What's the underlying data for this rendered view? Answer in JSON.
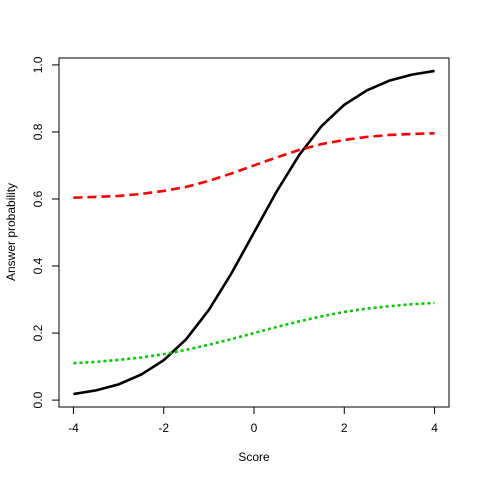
{
  "chart_data": {
    "type": "line",
    "x_label": "Score",
    "y_label": "Answer probability",
    "x": [
      -4,
      -3.5,
      -3,
      -2.5,
      -2,
      -1.5,
      -1,
      -0.5,
      0,
      0.5,
      1,
      1.5,
      2,
      2.5,
      3,
      3.5,
      4
    ],
    "series": [
      {
        "color": "#000000",
        "dash": "none",
        "values": [
          0.018,
          0.029,
          0.047,
          0.076,
          0.119,
          0.182,
          0.269,
          0.378,
          0.5,
          0.622,
          0.731,
          0.818,
          0.881,
          0.924,
          0.953,
          0.971,
          0.982
        ]
      },
      {
        "color": "#ff0000",
        "dash": "9 5",
        "values": [
          0.604,
          0.606,
          0.609,
          0.615,
          0.624,
          0.636,
          0.654,
          0.676,
          0.7,
          0.724,
          0.746,
          0.764,
          0.776,
          0.785,
          0.791,
          0.794,
          0.796
        ]
      },
      {
        "color": "#00cd00",
        "dash": "3 3",
        "values": [
          0.11,
          0.114,
          0.12,
          0.127,
          0.137,
          0.15,
          0.165,
          0.182,
          0.2,
          0.218,
          0.235,
          0.25,
          0.263,
          0.273,
          0.28,
          0.286,
          0.29
        ]
      }
    ],
    "xlim": [
      -4.32,
      4.32
    ],
    "xticks": [
      -4,
      -2,
      0,
      2,
      4
    ],
    "ylim": [
      -0.0206,
      1.0206
    ],
    "yticks": [
      {
        "value": 0,
        "label": "0.0"
      },
      {
        "value": 0.2,
        "label": "0.2"
      },
      {
        "value": 0.4,
        "label": "0.4"
      },
      {
        "value": 0.6,
        "label": "0.6"
      },
      {
        "value": 0.8,
        "label": "0.8"
      },
      {
        "value": 1,
        "label": "1.0"
      }
    ],
    "grid": false
  }
}
